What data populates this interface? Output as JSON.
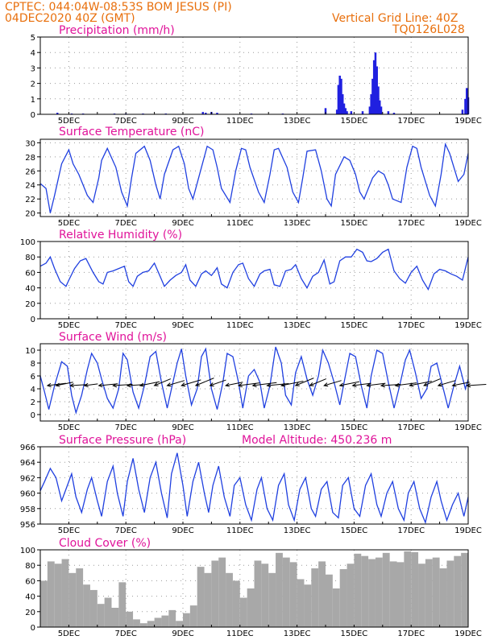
{
  "header": {
    "station": "CPTEC:   044:04W-08:53S   BOM JESUS (PI)",
    "run": "04DEC2020 40Z (GMT)",
    "grid_line": "Vertical Grid Line: 40Z",
    "code": "TQ0126L028",
    "model_altitude": "Model Altitude: 450.236 m"
  },
  "colors": {
    "header": "#e86f0c",
    "title": "#e0139a",
    "line": "#2040e0",
    "bars": "#2020e0",
    "cloud": "#a8a8a8",
    "wind_arrow": "#000000"
  },
  "chart_data": [
    {
      "type": "bar",
      "title": "Precipitation (mm/h)",
      "x_ticks": [
        "5DEC",
        "7DEC",
        "9DEC",
        "11DEC",
        "13DEC",
        "15DEC",
        "17DEC",
        "19DEC"
      ],
      "xlim": [
        4.0,
        19.0
      ],
      "ylim": [
        0,
        5
      ],
      "y_ticks": [
        0,
        1,
        2,
        3,
        4,
        5
      ],
      "grid": true,
      "x": [
        4.6,
        5.1,
        5.5,
        6.6,
        7.0,
        7.6,
        8.4,
        9.7,
        9.8,
        10.0,
        10.2,
        11.4,
        12.5,
        14.0,
        14.4,
        14.45,
        14.5,
        14.55,
        14.6,
        14.65,
        14.7,
        14.75,
        14.9,
        15.3,
        15.55,
        15.6,
        15.65,
        15.7,
        15.75,
        15.8,
        15.85,
        15.9,
        15.95,
        16.2,
        16.4,
        18.8,
        18.9,
        18.95,
        19.0
      ],
      "values": [
        0.1,
        0.05,
        0.05,
        0.05,
        0.05,
        0.05,
        0.05,
        0.15,
        0.1,
        0.15,
        0.1,
        0.05,
        0.05,
        0.4,
        0.3,
        1.9,
        2.5,
        2.3,
        1.3,
        0.7,
        0.4,
        0.2,
        0.2,
        0.2,
        0.5,
        1.3,
        2.3,
        3.5,
        4.0,
        3.1,
        1.8,
        0.9,
        0.5,
        0.2,
        0.1,
        0.3,
        1.0,
        1.7,
        1.1
      ]
    },
    {
      "type": "line",
      "title": "Surface Temperature (nC)",
      "x_ticks": [
        "5DEC",
        "7DEC",
        "9DEC",
        "11DEC",
        "13DEC",
        "15DEC",
        "17DEC",
        "19DEC"
      ],
      "xlim": [
        4.0,
        19.0
      ],
      "ylim": [
        19.5,
        30.5
      ],
      "y_ticks": [
        20,
        22,
        24,
        26,
        28,
        30
      ],
      "grid": true,
      "x": [
        4.0,
        4.2,
        4.35,
        4.5,
        4.75,
        5.0,
        5.15,
        5.35,
        5.65,
        5.85,
        6.05,
        6.15,
        6.35,
        6.65,
        6.85,
        7.05,
        7.2,
        7.35,
        7.65,
        7.85,
        8.05,
        8.2,
        8.35,
        8.65,
        8.85,
        9.05,
        9.2,
        9.35,
        9.65,
        9.85,
        10.05,
        10.2,
        10.35,
        10.65,
        10.85,
        11.05,
        11.2,
        11.35,
        11.65,
        11.85,
        12.05,
        12.2,
        12.35,
        12.65,
        12.85,
        13.05,
        13.2,
        13.35,
        13.65,
        13.85,
        14.05,
        14.2,
        14.35,
        14.65,
        14.85,
        15.05,
        15.2,
        15.35,
        15.65,
        15.85,
        16.05,
        16.2,
        16.35,
        16.65,
        16.85,
        17.05,
        17.2,
        17.35,
        17.65,
        17.85,
        18.05,
        18.2,
        18.35,
        18.65,
        18.85,
        19.0
      ],
      "values": [
        24.2,
        23.5,
        20.0,
        22.5,
        27.0,
        29.0,
        27.0,
        25.5,
        22.5,
        21.5,
        25.0,
        27.5,
        29.2,
        26.5,
        23.0,
        21.0,
        25.0,
        28.5,
        29.5,
        27.5,
        24.0,
        22.0,
        25.5,
        29.0,
        29.5,
        27.0,
        23.5,
        22.0,
        26.5,
        29.5,
        29.0,
        26.5,
        23.5,
        21.5,
        26.0,
        29.2,
        29.0,
        26.5,
        23.0,
        21.5,
        25.5,
        29.0,
        29.2,
        26.5,
        23.0,
        21.5,
        25.0,
        28.8,
        29.0,
        26.0,
        22.0,
        21.0,
        25.5,
        28.0,
        27.5,
        25.5,
        23.0,
        22.0,
        25.0,
        26.0,
        25.5,
        24.0,
        22.0,
        21.5,
        26.5,
        29.5,
        29.2,
        26.5,
        22.5,
        21.0,
        25.5,
        29.8,
        28.5,
        24.5,
        25.5,
        28.5
      ]
    },
    {
      "type": "line",
      "title": "Relative Humidity (%)",
      "x_ticks": [
        "5DEC",
        "7DEC",
        "9DEC",
        "11DEC",
        "13DEC",
        "15DEC",
        "17DEC",
        "19DEC"
      ],
      "xlim": [
        4.0,
        19.0
      ],
      "ylim": [
        0,
        100
      ],
      "y_ticks": [
        0,
        20,
        40,
        60,
        80,
        100
      ],
      "grid": true,
      "x": [
        4.0,
        4.2,
        4.35,
        4.5,
        4.7,
        4.9,
        5.0,
        5.2,
        5.4,
        5.6,
        5.85,
        6.05,
        6.2,
        6.35,
        6.55,
        6.75,
        6.95,
        7.1,
        7.25,
        7.4,
        7.6,
        7.8,
        8.0,
        8.2,
        8.35,
        8.55,
        8.75,
        8.95,
        9.1,
        9.25,
        9.45,
        9.65,
        9.8,
        10.0,
        10.2,
        10.35,
        10.55,
        10.75,
        10.95,
        11.1,
        11.3,
        11.5,
        11.7,
        11.85,
        12.05,
        12.2,
        12.4,
        12.6,
        12.8,
        12.95,
        13.15,
        13.35,
        13.55,
        13.75,
        13.95,
        14.15,
        14.3,
        14.5,
        14.7,
        14.9,
        15.1,
        15.3,
        15.45,
        15.6,
        15.8,
        16.0,
        16.2,
        16.4,
        16.6,
        16.8,
        17.0,
        17.2,
        17.4,
        17.6,
        17.8,
        18.0,
        18.2,
        18.4,
        18.6,
        18.8,
        19.0
      ],
      "values": [
        68,
        72,
        80,
        65,
        48,
        42,
        50,
        65,
        75,
        78,
        60,
        48,
        45,
        60,
        62,
        65,
        68,
        48,
        42,
        55,
        60,
        62,
        72,
        55,
        42,
        50,
        56,
        60,
        70,
        50,
        42,
        58,
        62,
        56,
        66,
        45,
        40,
        60,
        70,
        72,
        52,
        42,
        58,
        62,
        64,
        44,
        42,
        62,
        64,
        70,
        52,
        40,
        55,
        60,
        76,
        45,
        48,
        75,
        80,
        80,
        90,
        86,
        75,
        74,
        78,
        86,
        90,
        62,
        52,
        46,
        60,
        68,
        50,
        38,
        58,
        64,
        62,
        58,
        55,
        50,
        80
      ]
    },
    {
      "type": "line",
      "title": "Surface Wind (m/s)",
      "x_ticks": [
        "5DEC",
        "7DEC",
        "9DEC",
        "11DEC",
        "13DEC",
        "15DEC",
        "17DEC",
        "19DEC"
      ],
      "xlim": [
        4.0,
        19.0
      ],
      "ylim": [
        -1,
        11
      ],
      "y_ticks": [
        0,
        2,
        4,
        6,
        8,
        10
      ],
      "grid": true,
      "x": [
        4.0,
        4.15,
        4.3,
        4.5,
        4.75,
        4.95,
        5.1,
        5.25,
        5.45,
        5.65,
        5.8,
        6.0,
        6.15,
        6.35,
        6.55,
        6.75,
        6.9,
        7.05,
        7.25,
        7.45,
        7.65,
        7.85,
        8.05,
        8.25,
        8.45,
        8.6,
        8.8,
        8.95,
        9.1,
        9.3,
        9.5,
        9.65,
        9.8,
        10.0,
        10.2,
        10.4,
        10.55,
        10.75,
        10.95,
        11.1,
        11.3,
        11.5,
        11.7,
        11.85,
        12.05,
        12.25,
        12.45,
        12.6,
        12.8,
        12.95,
        13.15,
        13.35,
        13.55,
        13.75,
        13.9,
        14.1,
        14.3,
        14.5,
        14.65,
        14.85,
        15.05,
        15.25,
        15.45,
        15.6,
        15.8,
        16.0,
        16.2,
        16.4,
        16.6,
        16.8,
        16.95,
        17.15,
        17.35,
        17.55,
        17.7,
        17.9,
        18.1,
        18.3,
        18.5,
        18.7,
        18.9,
        19.0
      ],
      "values": [
        6.0,
        3.5,
        0.8,
        4.5,
        8.2,
        7.5,
        3.0,
        0.3,
        3.0,
        7.0,
        9.5,
        8.0,
        5.5,
        2.5,
        1.0,
        4.0,
        9.5,
        8.5,
        3.5,
        1.0,
        4.5,
        9.0,
        9.8,
        5.0,
        1.0,
        4.0,
        8.0,
        10.2,
        6.0,
        1.5,
        4.0,
        9.0,
        10.2,
        4.0,
        0.8,
        5.0,
        9.5,
        9.0,
        5.0,
        1.0,
        6.0,
        7.0,
        5.0,
        1.0,
        4.5,
        10.5,
        8.0,
        3.0,
        1.5,
        6.5,
        9.0,
        5.5,
        3.0,
        6.0,
        10.0,
        8.0,
        5.0,
        1.5,
        5.0,
        9.5,
        9.0,
        4.5,
        1.0,
        6.0,
        10.0,
        9.5,
        5.0,
        1.0,
        4.5,
        8.5,
        10.0,
        6.5,
        2.5,
        4.0,
        7.5,
        8.0,
        4.5,
        1.0,
        4.5,
        7.5,
        4.0,
        5.5
      ]
    },
    {
      "type": "line",
      "title": "Surface Pressure (hPa)",
      "x_ticks": [
        "5DEC",
        "7DEC",
        "9DEC",
        "11DEC",
        "13DEC",
        "15DEC",
        "17DEC",
        "19DEC"
      ],
      "xlim": [
        4.0,
        19.0
      ],
      "ylim": [
        956,
        966
      ],
      "y_ticks": [
        956,
        958,
        960,
        962,
        964,
        966
      ],
      "grid": true,
      "x": [
        4.0,
        4.15,
        4.35,
        4.55,
        4.75,
        4.95,
        5.1,
        5.25,
        5.45,
        5.65,
        5.8,
        6.0,
        6.15,
        6.35,
        6.55,
        6.7,
        6.9,
        7.05,
        7.25,
        7.45,
        7.65,
        7.85,
        8.05,
        8.25,
        8.45,
        8.6,
        8.8,
        9.0,
        9.15,
        9.35,
        9.55,
        9.75,
        9.9,
        10.05,
        10.25,
        10.45,
        10.65,
        10.8,
        11.0,
        11.2,
        11.4,
        11.6,
        11.75,
        11.95,
        12.15,
        12.35,
        12.55,
        12.7,
        12.9,
        13.1,
        13.3,
        13.5,
        13.65,
        13.85,
        14.05,
        14.25,
        14.45,
        14.6,
        14.8,
        15.0,
        15.2,
        15.4,
        15.6,
        15.8,
        15.95,
        16.15,
        16.35,
        16.55,
        16.75,
        16.9,
        17.1,
        17.3,
        17.5,
        17.7,
        17.9,
        18.05,
        18.25,
        18.45,
        18.65,
        18.85,
        19.0
      ],
      "values": [
        960.3,
        961.5,
        963.2,
        962.0,
        959.0,
        961.0,
        962.5,
        959.5,
        957.5,
        960.5,
        962.0,
        959.0,
        957.0,
        961.5,
        963.5,
        960.0,
        957.0,
        961.5,
        964.5,
        960.5,
        957.5,
        962.0,
        964.0,
        960.0,
        956.8,
        962.5,
        965.2,
        961.0,
        957.0,
        961.5,
        964.0,
        960.0,
        957.5,
        961.0,
        963.5,
        959.5,
        957.0,
        961.0,
        962.0,
        958.5,
        956.5,
        960.5,
        962.0,
        958.0,
        956.5,
        961.0,
        962.5,
        958.5,
        956.5,
        960.5,
        962.0,
        958.0,
        957.0,
        960.5,
        961.5,
        957.5,
        956.8,
        961.0,
        962.0,
        958.0,
        957.0,
        961.0,
        962.5,
        958.5,
        957.0,
        960.0,
        961.5,
        958.0,
        956.5,
        960.0,
        961.5,
        958.0,
        956.2,
        959.5,
        961.5,
        959.0,
        956.5,
        958.5,
        960.0,
        957.0,
        959.5
      ]
    },
    {
      "type": "bar",
      "title": "Cloud Cover (%)",
      "x_ticks": [
        "5DEC",
        "7DEC",
        "9DEC",
        "11DEC",
        "13DEC",
        "15DEC",
        "17DEC",
        "19DEC"
      ],
      "xlim": [
        4.0,
        19.0
      ],
      "ylim": [
        0,
        100
      ],
      "y_ticks": [
        0,
        20,
        40,
        60,
        80,
        100
      ],
      "grid": true,
      "x": [
        4.0,
        4.25,
        4.5,
        4.75,
        5.0,
        5.25,
        5.5,
        5.75,
        6.0,
        6.25,
        6.5,
        6.75,
        7.0,
        7.25,
        7.5,
        7.75,
        8.0,
        8.25,
        8.5,
        8.75,
        9.0,
        9.25,
        9.5,
        9.75,
        10.0,
        10.25,
        10.5,
        10.75,
        11.0,
        11.25,
        11.5,
        11.75,
        12.0,
        12.25,
        12.5,
        12.75,
        13.0,
        13.25,
        13.5,
        13.75,
        14.0,
        14.25,
        14.5,
        14.75,
        15.0,
        15.25,
        15.5,
        15.75,
        16.0,
        16.25,
        16.5,
        16.75,
        17.0,
        17.25,
        17.5,
        17.75,
        18.0,
        18.25,
        18.5,
        18.75
      ],
      "values": [
        60,
        85,
        82,
        88,
        70,
        76,
        55,
        48,
        30,
        38,
        25,
        58,
        20,
        10,
        5,
        8,
        12,
        15,
        22,
        8,
        18,
        28,
        78,
        70,
        86,
        90,
        70,
        60,
        38,
        50,
        86,
        82,
        70,
        96,
        90,
        84,
        62,
        55,
        76,
        85,
        68,
        50,
        75,
        82,
        95,
        92,
        88,
        90,
        96,
        85,
        84,
        98,
        97,
        82,
        88,
        90,
        76,
        86,
        92,
        96
      ]
    }
  ],
  "wind_vectors": {
    "x": [
      4.25,
      4.55,
      5.05,
      5.55,
      6.05,
      6.55,
      7.05,
      7.5,
      8.0,
      8.45,
      8.95,
      9.45,
      9.95,
      10.5,
      10.95,
      11.45,
      11.95,
      12.45,
      12.95,
      13.45,
      13.95,
      14.5,
      14.95,
      15.45,
      15.95,
      16.45,
      16.95,
      17.45,
      17.95,
      18.45,
      18.95
    ],
    "speed": [
      3.5,
      3.5,
      3.0,
      2.5,
      3.5,
      3.5,
      3.0,
      4.0,
      4.5,
      4.0,
      4.5,
      5.0,
      4.0,
      3.5,
      4.0,
      4.5,
      4.0,
      4.5,
      5.0,
      4.5,
      4.0,
      4.0,
      3.5,
      3.5,
      3.5,
      4.0,
      4.5,
      4.5,
      4.0,
      3.5,
      3.5
    ],
    "direction_deg": [
      70,
      60,
      80,
      70,
      75,
      80,
      80,
      60,
      40,
      50,
      50,
      40,
      45,
      60,
      70,
      70,
      75,
      60,
      40,
      40,
      50,
      60,
      70,
      70,
      80,
      70,
      60,
      40,
      50,
      60,
      80
    ]
  }
}
